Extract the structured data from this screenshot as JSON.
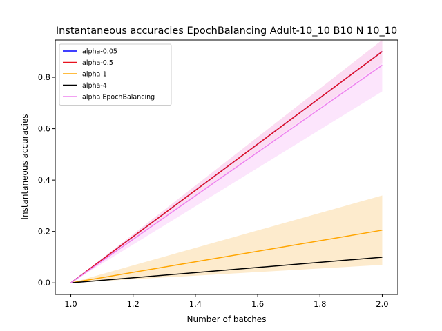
{
  "chart_data": {
    "type": "line",
    "title": "Instantaneous accuracies EpochBalancing Adult-10_10 B10 N 10_10",
    "xlabel": "Number of batches",
    "ylabel": "Instantaneous accuracies",
    "xlim": [
      0.95,
      2.05
    ],
    "ylim": [
      -0.045,
      0.945
    ],
    "xticks": [
      "1.0",
      "1.2",
      "1.4",
      "1.6",
      "1.8",
      "2.0"
    ],
    "yticks": [
      "0.0",
      "0.2",
      "0.4",
      "0.6",
      "0.8"
    ],
    "legend_position": "top-left",
    "grid": false,
    "x": [
      1.0,
      2.0
    ],
    "series": [
      {
        "name": "alpha-0.05",
        "color": "#0000ff",
        "values": [
          0.0,
          0.9
        ]
      },
      {
        "name": "alpha-0.5",
        "color": "#e8121e",
        "values": [
          0.0,
          0.9
        ],
        "band": [
          [
            0.0,
            0.0
          ],
          [
            0.855,
            0.945
          ]
        ],
        "band_color": "#f5b6b6"
      },
      {
        "name": "alpha-1",
        "color": "#ffa500",
        "values": [
          0.0,
          0.205
        ],
        "band": [
          [
            0.0,
            0.0
          ],
          [
            0.07,
            0.34
          ]
        ],
        "band_color": "#fde8c4"
      },
      {
        "name": "alpha-4",
        "color": "#000000",
        "values": [
          0.0,
          0.1
        ]
      },
      {
        "name": "alpha EpochBalancing",
        "color": "#ee82ee",
        "values": [
          0.0,
          0.847
        ],
        "band": [
          [
            0.0,
            0.0
          ],
          [
            0.745,
            0.945
          ]
        ],
        "band_color": "#fbe0fb"
      }
    ]
  }
}
